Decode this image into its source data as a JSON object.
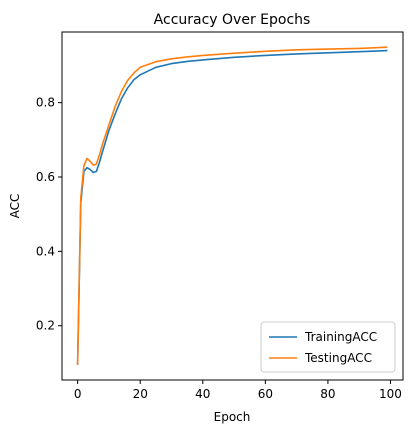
{
  "chart_data": {
    "type": "line",
    "title": "Accuracy Over Epochs",
    "xlabel": "Epoch",
    "ylabel": "ACC",
    "xlim": [
      -5,
      104
    ],
    "ylim": [
      0.054,
      0.99
    ],
    "x_ticks": [
      0,
      20,
      40,
      60,
      80,
      100
    ],
    "y_ticks": [
      0.2,
      0.4,
      0.6,
      0.8
    ],
    "grid": false,
    "legend_position": "lower-right",
    "series": [
      {
        "name": "TrainingACC",
        "color": "#1f77b4",
        "x": [
          0,
          1,
          2,
          3,
          4,
          5,
          6,
          7,
          8,
          10,
          12,
          14,
          16,
          18,
          20,
          25,
          30,
          35,
          40,
          50,
          60,
          70,
          80,
          90,
          99
        ],
        "y": [
          0.095,
          0.53,
          0.615,
          0.625,
          0.62,
          0.612,
          0.615,
          0.64,
          0.67,
          0.725,
          0.77,
          0.81,
          0.84,
          0.862,
          0.875,
          0.895,
          0.905,
          0.911,
          0.915,
          0.922,
          0.927,
          0.931,
          0.934,
          0.937,
          0.94
        ]
      },
      {
        "name": "TestingACC",
        "color": "#ff7f0e",
        "x": [
          0,
          1,
          2,
          3,
          4,
          5,
          6,
          7,
          8,
          10,
          12,
          14,
          16,
          18,
          20,
          25,
          30,
          35,
          40,
          50,
          60,
          70,
          80,
          90,
          99
        ],
        "y": [
          0.095,
          0.545,
          0.63,
          0.65,
          0.642,
          0.632,
          0.635,
          0.66,
          0.69,
          0.74,
          0.79,
          0.83,
          0.86,
          0.88,
          0.895,
          0.91,
          0.918,
          0.923,
          0.927,
          0.933,
          0.938,
          0.942,
          0.944,
          0.946,
          0.949
        ]
      }
    ]
  }
}
